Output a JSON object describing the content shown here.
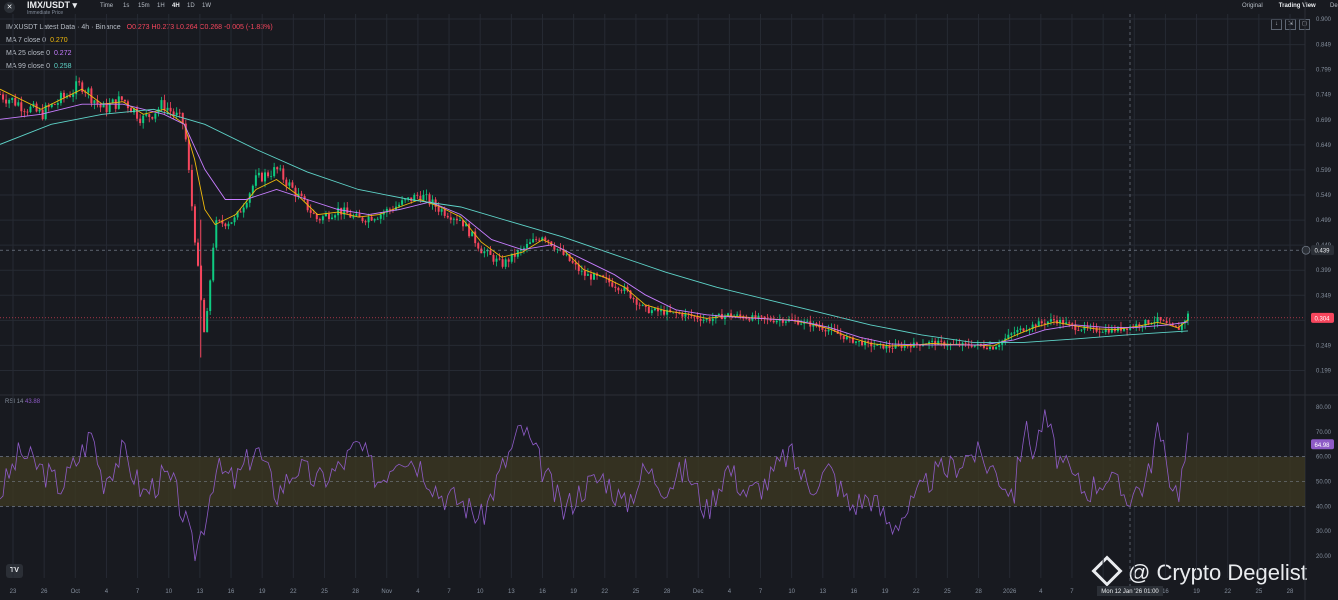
{
  "header": {
    "pair": "IMX/USDT",
    "subtitle": "Immediate Price",
    "intervals": [
      "Time",
      "1s",
      "15m",
      "1H",
      "4H",
      "1D",
      "1W"
    ],
    "active_interval": "4H",
    "views": [
      "Original",
      "Trading View",
      "Depth"
    ],
    "active_view": "Trading View"
  },
  "legend": {
    "ohlc": "IMXUSDT Latest Data · 4h · Binance",
    "o_label": "O",
    "o": "0.273",
    "h_label": "H",
    "h": "0.273",
    "l_label": "L",
    "l": "0.264",
    "c_label": "C",
    "c": "0.268",
    "change": "-0.005 (-1.83%)",
    "ma7": {
      "label": "MA 7 close 0",
      "value": "0.270",
      "color": "#f0b90b"
    },
    "ma25": {
      "label": "MA 25 close 0",
      "value": "0.272",
      "color": "#c77dff"
    },
    "ma99": {
      "label": "MA 99 close 0",
      "value": "0.258",
      "color": "#5ed3c8"
    }
  },
  "rsi_legend": {
    "label": "RSI 14",
    "value": "43.88"
  },
  "watermark": "@ Crypto Degelist",
  "crosshair_label": "Mon 12 Jan '26  01:00",
  "colors": {
    "up": "#0ecb81",
    "down": "#f6465d",
    "rsi": "#8e5bc7",
    "band": "#3d3a22"
  },
  "chart_data": [
    {
      "type": "candlestick",
      "price_ticks": [
        "0.900",
        "0.849",
        "0.799",
        "0.749",
        "0.699",
        "0.649",
        "0.599",
        "0.549",
        "0.499",
        "0.449",
        "0.399",
        "0.349",
        "0.299",
        "0.249",
        "0.199"
      ],
      "ylim": [
        0.17,
        0.9
      ],
      "last_price_label": "0.304",
      "crosshair_price_label": "0.439",
      "date_ticks": [
        "23",
        "26",
        "Oct",
        "4",
        "7",
        "10",
        "13",
        "16",
        "19",
        "22",
        "25",
        "28",
        "Nov",
        "4",
        "7",
        "10",
        "13",
        "16",
        "19",
        "22",
        "25",
        "28",
        "Dec",
        "4",
        "7",
        "10",
        "13",
        "16",
        "19",
        "22",
        "25",
        "28",
        "2026",
        "4",
        "7",
        "10",
        "13",
        "16",
        "19",
        "22",
        "25",
        "28"
      ],
      "close_path": [
        [
          0,
          0.75
        ],
        [
          4,
          0.71
        ],
        [
          8,
          0.77
        ],
        [
          10,
          0.72
        ],
        [
          12,
          0.74
        ],
        [
          14,
          0.7
        ],
        [
          16,
          0.73
        ],
        [
          18,
          0.69
        ],
        [
          19,
          0.47
        ],
        [
          20,
          0.26
        ],
        [
          21,
          0.49
        ],
        [
          23,
          0.5
        ],
        [
          25,
          0.58
        ],
        [
          27,
          0.6
        ],
        [
          29,
          0.55
        ],
        [
          31,
          0.5
        ],
        [
          33,
          0.52
        ],
        [
          35,
          0.5
        ],
        [
          37,
          0.51
        ],
        [
          39,
          0.53
        ],
        [
          41,
          0.55
        ],
        [
          43,
          0.52
        ],
        [
          45,
          0.5
        ],
        [
          47,
          0.44
        ],
        [
          49,
          0.41
        ],
        [
          51,
          0.44
        ],
        [
          53,
          0.47
        ],
        [
          55,
          0.43
        ],
        [
          57,
          0.39
        ],
        [
          59,
          0.38
        ],
        [
          61,
          0.36
        ],
        [
          63,
          0.32
        ],
        [
          65,
          0.315
        ],
        [
          67,
          0.31
        ],
        [
          69,
          0.3
        ],
        [
          71,
          0.31
        ],
        [
          73,
          0.305
        ],
        [
          75,
          0.3
        ],
        [
          77,
          0.3
        ],
        [
          79,
          0.292
        ],
        [
          81,
          0.28
        ],
        [
          83,
          0.26
        ],
        [
          85,
          0.25
        ],
        [
          87,
          0.245
        ],
        [
          89,
          0.25
        ],
        [
          91,
          0.255
        ],
        [
          93,
          0.25
        ],
        [
          95,
          0.25
        ],
        [
          97,
          0.245
        ],
        [
          99,
          0.275
        ],
        [
          101,
          0.29
        ],
        [
          103,
          0.3
        ],
        [
          105,
          0.285
        ],
        [
          107,
          0.28
        ],
        [
          109,
          0.28
        ],
        [
          111,
          0.29
        ],
        [
          113,
          0.3
        ],
        [
          114,
          0.29
        ],
        [
          115,
          0.28
        ],
        [
          116,
          0.31
        ]
      ],
      "ma7": [
        [
          0,
          0.76
        ],
        [
          4,
          0.72
        ],
        [
          8,
          0.76
        ],
        [
          10,
          0.73
        ],
        [
          12,
          0.735
        ],
        [
          14,
          0.71
        ],
        [
          16,
          0.72
        ],
        [
          18,
          0.69
        ],
        [
          19,
          0.62
        ],
        [
          20,
          0.52
        ],
        [
          21,
          0.49
        ],
        [
          23,
          0.51
        ],
        [
          25,
          0.56
        ],
        [
          27,
          0.58
        ],
        [
          29,
          0.55
        ],
        [
          31,
          0.51
        ],
        [
          33,
          0.515
        ],
        [
          35,
          0.505
        ],
        [
          37,
          0.51
        ],
        [
          39,
          0.525
        ],
        [
          41,
          0.54
        ],
        [
          43,
          0.525
        ],
        [
          45,
          0.505
        ],
        [
          47,
          0.455
        ],
        [
          49,
          0.425
        ],
        [
          51,
          0.435
        ],
        [
          53,
          0.46
        ],
        [
          55,
          0.44
        ],
        [
          57,
          0.4
        ],
        [
          59,
          0.385
        ],
        [
          61,
          0.365
        ],
        [
          63,
          0.33
        ],
        [
          65,
          0.318
        ],
        [
          67,
          0.312
        ],
        [
          69,
          0.303
        ],
        [
          71,
          0.308
        ],
        [
          73,
          0.305
        ],
        [
          75,
          0.302
        ],
        [
          77,
          0.3
        ],
        [
          79,
          0.293
        ],
        [
          81,
          0.282
        ],
        [
          83,
          0.265
        ],
        [
          85,
          0.253
        ],
        [
          87,
          0.248
        ],
        [
          89,
          0.249
        ],
        [
          91,
          0.253
        ],
        [
          93,
          0.251
        ],
        [
          95,
          0.25
        ],
        [
          97,
          0.248
        ],
        [
          99,
          0.268
        ],
        [
          101,
          0.285
        ],
        [
          103,
          0.296
        ],
        [
          105,
          0.288
        ],
        [
          107,
          0.282
        ],
        [
          109,
          0.281
        ],
        [
          111,
          0.287
        ],
        [
          113,
          0.295
        ],
        [
          114,
          0.291
        ],
        [
          115,
          0.284
        ],
        [
          116,
          0.3
        ]
      ],
      "ma25": [
        [
          0,
          0.7
        ],
        [
          4,
          0.71
        ],
        [
          8,
          0.73
        ],
        [
          12,
          0.73
        ],
        [
          16,
          0.71
        ],
        [
          18,
          0.69
        ],
        [
          20,
          0.6
        ],
        [
          22,
          0.54
        ],
        [
          24,
          0.54
        ],
        [
          27,
          0.56
        ],
        [
          30,
          0.54
        ],
        [
          33,
          0.52
        ],
        [
          36,
          0.51
        ],
        [
          39,
          0.52
        ],
        [
          42,
          0.535
        ],
        [
          45,
          0.51
        ],
        [
          48,
          0.46
        ],
        [
          51,
          0.44
        ],
        [
          54,
          0.45
        ],
        [
          57,
          0.42
        ],
        [
          60,
          0.39
        ],
        [
          63,
          0.35
        ],
        [
          66,
          0.32
        ],
        [
          69,
          0.31
        ],
        [
          72,
          0.305
        ],
        [
          75,
          0.302
        ],
        [
          78,
          0.298
        ],
        [
          81,
          0.285
        ],
        [
          84,
          0.265
        ],
        [
          87,
          0.252
        ],
        [
          90,
          0.25
        ],
        [
          93,
          0.25
        ],
        [
          96,
          0.25
        ],
        [
          99,
          0.26
        ],
        [
          102,
          0.28
        ],
        [
          105,
          0.29
        ],
        [
          108,
          0.285
        ],
        [
          111,
          0.285
        ],
        [
          114,
          0.29
        ],
        [
          116,
          0.296
        ]
      ],
      "ma99": [
        [
          0,
          0.65
        ],
        [
          5,
          0.69
        ],
        [
          10,
          0.71
        ],
        [
          15,
          0.72
        ],
        [
          20,
          0.69
        ],
        [
          25,
          0.64
        ],
        [
          30,
          0.595
        ],
        [
          35,
          0.56
        ],
        [
          40,
          0.54
        ],
        [
          45,
          0.525
        ],
        [
          50,
          0.495
        ],
        [
          55,
          0.465
        ],
        [
          60,
          0.43
        ],
        [
          65,
          0.395
        ],
        [
          70,
          0.365
        ],
        [
          75,
          0.34
        ],
        [
          80,
          0.315
        ],
        [
          85,
          0.29
        ],
        [
          90,
          0.27
        ],
        [
          95,
          0.255
        ],
        [
          100,
          0.255
        ],
        [
          105,
          0.262
        ],
        [
          110,
          0.27
        ],
        [
          116,
          0.278
        ]
      ]
    },
    {
      "type": "line",
      "ticks": [
        "80.00",
        "70.00",
        "60.00",
        "50.00",
        "40.00",
        "30.00",
        "20.00"
      ],
      "ylim": [
        17,
        82
      ],
      "bands": [
        40,
        50,
        60
      ],
      "last_label": "64.98",
      "values": [
        [
          0,
          45
        ],
        [
          2,
          62
        ],
        [
          4,
          55
        ],
        [
          6,
          48
        ],
        [
          8,
          62
        ],
        [
          9,
          70
        ],
        [
          10,
          50
        ],
        [
          12,
          62
        ],
        [
          14,
          45
        ],
        [
          16,
          52
        ],
        [
          17,
          48
        ],
        [
          18,
          35
        ],
        [
          19,
          20
        ],
        [
          20,
          35
        ],
        [
          21,
          55
        ],
        [
          23,
          50
        ],
        [
          25,
          64
        ],
        [
          27,
          45
        ],
        [
          29,
          56
        ],
        [
          31,
          50
        ],
        [
          33,
          55
        ],
        [
          35,
          65
        ],
        [
          37,
          50
        ],
        [
          39,
          62
        ],
        [
          41,
          57
        ],
        [
          43,
          45
        ],
        [
          45,
          42
        ],
        [
          47,
          35
        ],
        [
          49,
          55
        ],
        [
          51,
          72
        ],
        [
          53,
          55
        ],
        [
          55,
          38
        ],
        [
          57,
          48
        ],
        [
          59,
          52
        ],
        [
          61,
          40
        ],
        [
          63,
          55
        ],
        [
          65,
          48
        ],
        [
          67,
          55
        ],
        [
          69,
          38
        ],
        [
          71,
          56
        ],
        [
          73,
          45
        ],
        [
          75,
          50
        ],
        [
          77,
          62
        ],
        [
          79,
          48
        ],
        [
          81,
          55
        ],
        [
          83,
          40
        ],
        [
          85,
          44
        ],
        [
          87,
          32
        ],
        [
          89,
          40
        ],
        [
          91,
          52
        ],
        [
          93,
          56
        ],
        [
          95,
          62
        ],
        [
          97,
          55
        ],
        [
          99,
          45
        ],
        [
          100,
          72
        ],
        [
          101,
          62
        ],
        [
          102,
          78
        ],
        [
          103,
          62
        ],
        [
          104,
          55
        ],
        [
          106,
          46
        ],
        [
          108,
          52
        ],
        [
          110,
          44
        ],
        [
          112,
          50
        ],
        [
          113,
          71
        ],
        [
          114,
          55
        ],
        [
          115,
          45
        ],
        [
          116,
          65
        ]
      ]
    }
  ]
}
